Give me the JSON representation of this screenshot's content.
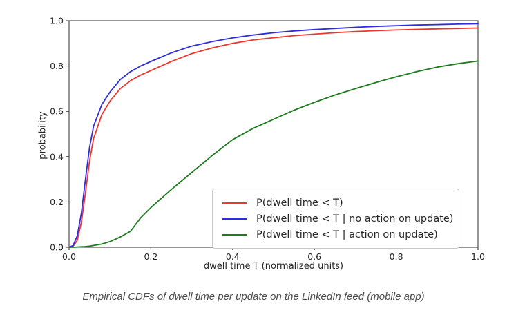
{
  "figure": {
    "caption": "Empirical CDFs of dwell time per update on the LinkedIn feed (mobile app)"
  },
  "chart_data": {
    "type": "line",
    "title": "",
    "xlabel": "dwell time T (normalized units)",
    "ylabel": "probability",
    "xlim": [
      0.0,
      1.0
    ],
    "ylim": [
      0.0,
      1.0
    ],
    "grid": false,
    "legend_position": "lower-right-inside",
    "x_ticks": [
      0.0,
      0.2,
      0.4,
      0.6,
      0.8,
      1.0
    ],
    "x_tick_labels": [
      "0.0",
      "0.2",
      "0.4",
      "0.6",
      "0.8",
      "1.0"
    ],
    "y_ticks": [
      0.0,
      0.2,
      0.4,
      0.6,
      0.8,
      1.0
    ],
    "y_tick_labels": [
      "0.0",
      "0.2",
      "0.4",
      "0.6",
      "0.8",
      "1.0"
    ],
    "x": [
      0,
      0.01,
      0.02,
      0.03,
      0.04,
      0.05,
      0.06,
      0.08,
      0.1,
      0.125,
      0.15,
      0.175,
      0.2,
      0.25,
      0.3,
      0.35,
      0.4,
      0.45,
      0.5,
      0.55,
      0.6,
      0.65,
      0.7,
      0.75,
      0.8,
      0.85,
      0.9,
      0.95,
      1.0
    ],
    "series": [
      {
        "name": "P(dwell time < T)",
        "color": "#ee352e",
        "values": [
          0,
          0.005,
          0.03,
          0.11,
          0.24,
          0.38,
          0.48,
          0.585,
          0.645,
          0.7,
          0.735,
          0.76,
          0.78,
          0.82,
          0.855,
          0.88,
          0.9,
          0.915,
          0.925,
          0.934,
          0.941,
          0.947,
          0.952,
          0.956,
          0.959,
          0.962,
          0.964,
          0.966,
          0.968
        ]
      },
      {
        "name": "P(dwell time < T | no action on update)",
        "color": "#2d2de0",
        "values": [
          0,
          0.008,
          0.05,
          0.15,
          0.3,
          0.44,
          0.535,
          0.63,
          0.685,
          0.74,
          0.775,
          0.8,
          0.82,
          0.858,
          0.888,
          0.908,
          0.924,
          0.937,
          0.947,
          0.955,
          0.961,
          0.966,
          0.971,
          0.975,
          0.978,
          0.981,
          0.983,
          0.985,
          0.987
        ]
      },
      {
        "name": "P(dwell time < T | action on update)",
        "color": "#1d7a1d",
        "values": [
          0,
          0,
          0.001,
          0.002,
          0.003,
          0.005,
          0.008,
          0.014,
          0.025,
          0.045,
          0.07,
          0.13,
          0.175,
          0.255,
          0.33,
          0.405,
          0.475,
          0.525,
          0.565,
          0.605,
          0.64,
          0.672,
          0.7,
          0.727,
          0.752,
          0.775,
          0.795,
          0.81,
          0.822
        ]
      }
    ]
  }
}
